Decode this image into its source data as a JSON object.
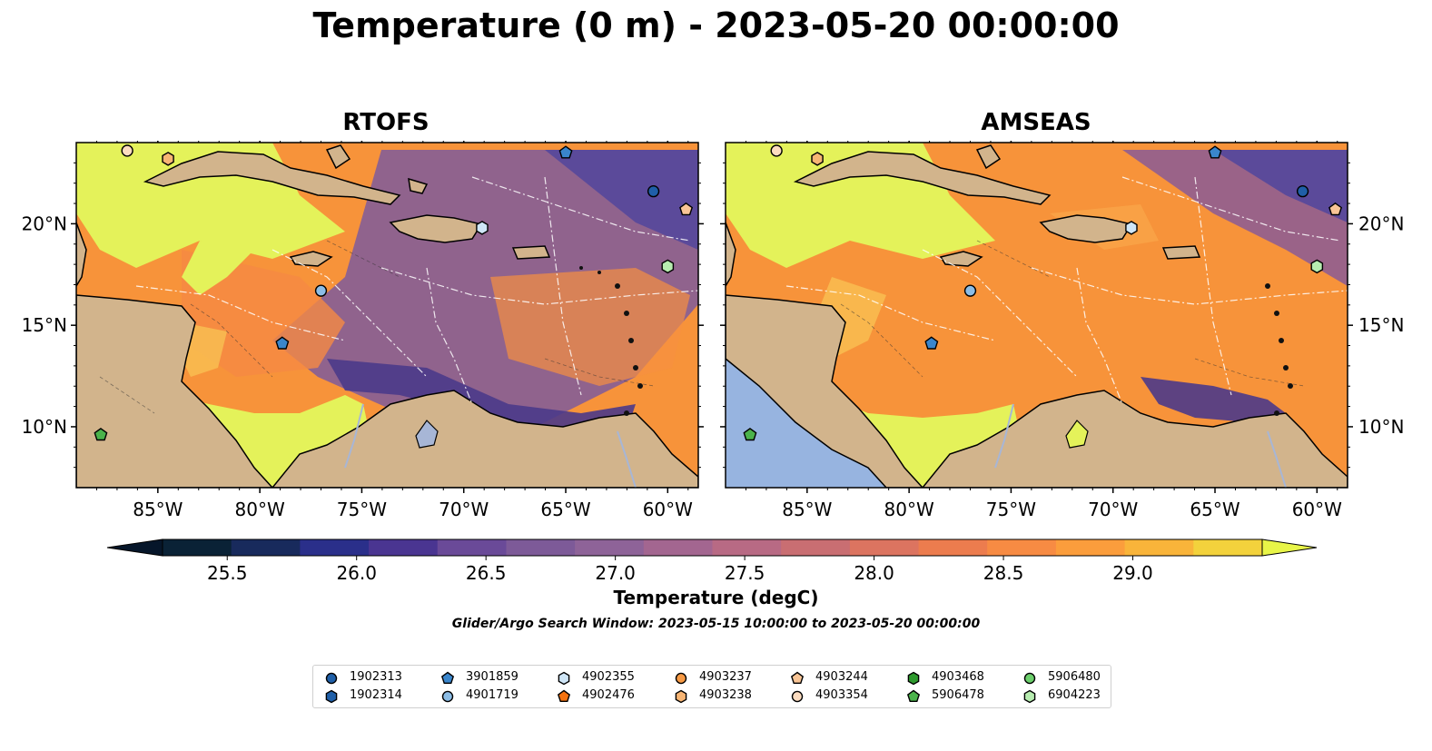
{
  "figure": {
    "title": "Temperature (0 m) - 2023-05-20 00:00:00",
    "subtitle": "Glider/Argo Search Window: 2023-05-15 10:00:00 to 2023-05-20 00:00:00"
  },
  "panels": [
    {
      "title": "RTOFS"
    },
    {
      "title": "AMSEAS"
    }
  ],
  "axes": {
    "lon_labels": [
      "85°W",
      "80°W",
      "75°W",
      "70°W",
      "65°W",
      "60°W"
    ],
    "lat_labels": [
      "20°N",
      "15°N",
      "10°N"
    ],
    "lon_range": [
      -89,
      -58.5
    ],
    "lat_range": [
      7,
      24
    ]
  },
  "colorbar": {
    "label": "Temperature (degC)",
    "ticks": [
      "25.5",
      "26.0",
      "26.5",
      "27.0",
      "27.5",
      "28.0",
      "28.5",
      "29.0"
    ],
    "range": [
      25.25,
      29.5
    ],
    "extend": "both"
  },
  "colors": {
    "land": "#d2b48c",
    "cold": "#6b4f9a",
    "warm": "#f7933a",
    "hot": "#e4f25a",
    "river": "#a7b6d6"
  },
  "legend": {
    "items": [
      {
        "id": "1902313",
        "marker": "circle",
        "color": "#1f5fa8"
      },
      {
        "id": "1902314",
        "marker": "hexagon",
        "color": "#1f5fa8"
      },
      {
        "id": "3901859",
        "marker": "pentagon",
        "color": "#3a86cc"
      },
      {
        "id": "4901719",
        "marker": "circle",
        "color": "#8cbde6"
      },
      {
        "id": "4902355",
        "marker": "hexagon",
        "color": "#cfe6f7"
      },
      {
        "id": "4902476",
        "marker": "pentagon",
        "color": "#f5720f"
      },
      {
        "id": "4903237",
        "marker": "circle",
        "color": "#f79a45"
      },
      {
        "id": "4903238",
        "marker": "hexagon",
        "color": "#f7b574"
      },
      {
        "id": "4903244",
        "marker": "pentagon",
        "color": "#f9c596"
      },
      {
        "id": "4903354",
        "marker": "circle",
        "color": "#fcdcc0"
      },
      {
        "id": "4903468",
        "marker": "hexagon",
        "color": "#2e9a2e"
      },
      {
        "id": "5906478",
        "marker": "pentagon",
        "color": "#4bb34b"
      },
      {
        "id": "5906480",
        "marker": "circle",
        "color": "#6ccf6c"
      },
      {
        "id": "6904223",
        "marker": "hexagon",
        "color": "#b7ecb0"
      }
    ]
  },
  "floats": [
    {
      "id": "4903354",
      "lon": -86.5,
      "lat": 23.6
    },
    {
      "id": "4903238",
      "lon": -84.5,
      "lat": 23.2
    },
    {
      "id": "3901859",
      "lon": -65.0,
      "lat": 23.5
    },
    {
      "id": "1902313",
      "lon": -60.7,
      "lat": 21.6
    },
    {
      "id": "4903244",
      "lon": -59.1,
      "lat": 20.7
    },
    {
      "id": "4902355",
      "lon": -69.1,
      "lat": 19.8
    },
    {
      "id": "6904223",
      "lon": -60.0,
      "lat": 17.9
    },
    {
      "id": "4901719",
      "lon": -77.0,
      "lat": 16.7
    },
    {
      "id": "3901859",
      "lon": -78.9,
      "lat": 14.1
    },
    {
      "id": "5906478",
      "lon": -87.8,
      "lat": 9.6
    }
  ]
}
